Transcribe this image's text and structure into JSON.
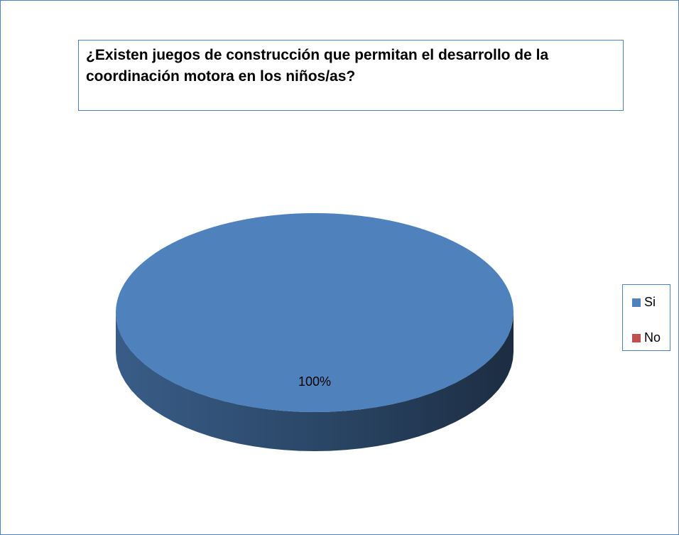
{
  "chart_data": {
    "type": "pie",
    "title": "¿Existen juegos de construcción que permitan el desarrollo de la coordinación motora en los niños/as?",
    "categories": [
      "Si",
      "No"
    ],
    "values": [
      100,
      0
    ],
    "value_labels": [
      "100%",
      null
    ],
    "colors": [
      "#4f81bd",
      "#c0504d"
    ],
    "legend": "right"
  }
}
